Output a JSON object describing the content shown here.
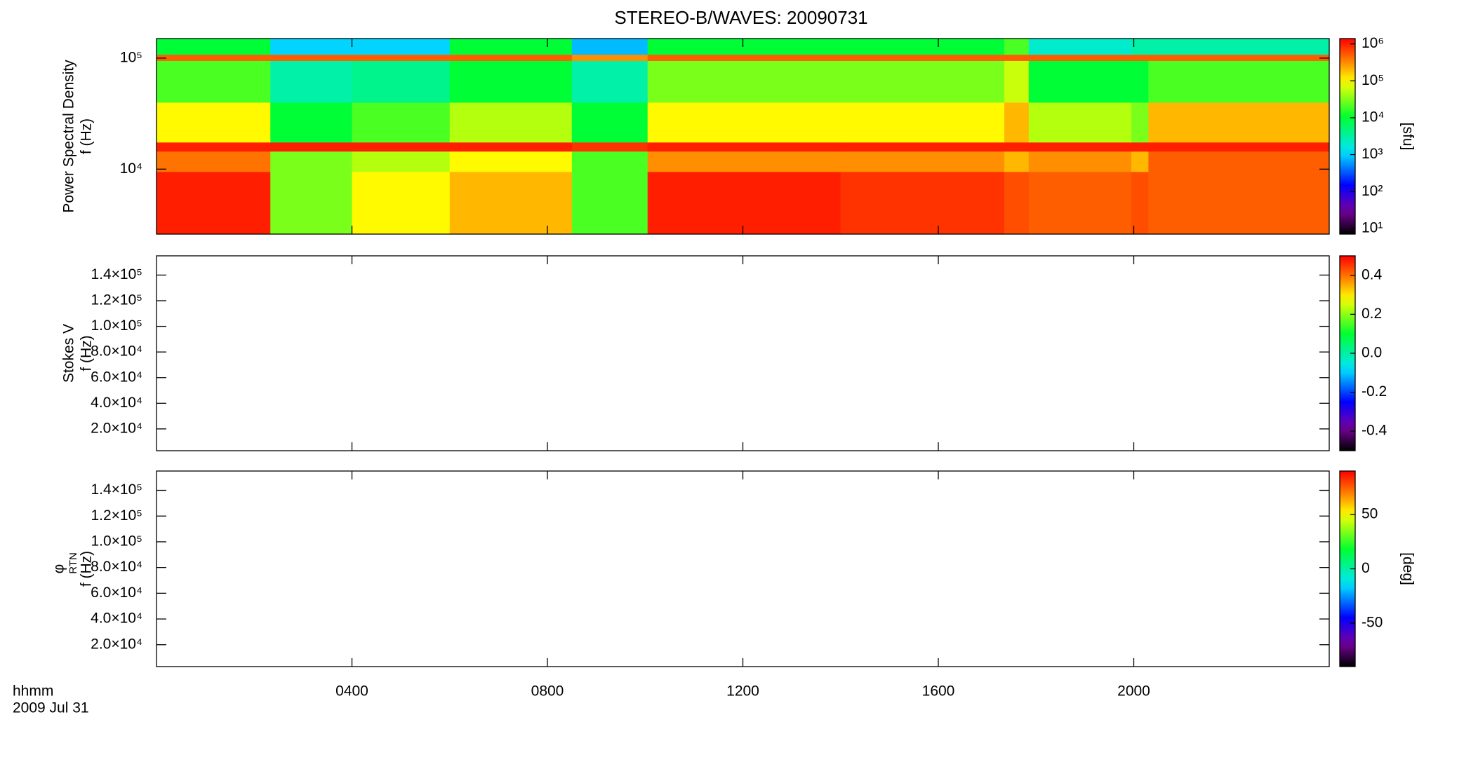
{
  "title": "STEREO-B/WAVES: 20090731",
  "x_axis": {
    "label": "hhmm",
    "date": "2009 Jul 31",
    "xlim": [
      0,
      24
    ],
    "xticks": [
      {
        "value": 4,
        "label": "0400"
      },
      {
        "value": 8,
        "label": "0800"
      },
      {
        "value": 12,
        "label": "1200"
      },
      {
        "value": 16,
        "label": "1600"
      },
      {
        "value": 20,
        "label": "2000"
      }
    ]
  },
  "chart_data": [
    {
      "type": "heatmap",
      "ylabel": [
        "Power Spectral Density",
        "f (Hz)"
      ],
      "ylog": true,
      "ylim": [
        2600,
        150000
      ],
      "yticks": [
        {
          "value": 10000,
          "label": "10⁴"
        },
        {
          "value": 100000,
          "label": "10⁵"
        }
      ],
      "x": [
        0,
        2.33,
        4.0,
        6.0,
        8.5,
        10.05,
        14,
        17.35,
        17.85,
        19.95,
        20.3,
        24
      ],
      "y": [
        2600,
        9500,
        14500,
        17500,
        40000,
        95000,
        108000,
        150000
      ],
      "values": [
        [
          1000000,
          30000,
          100000,
          200000,
          20000,
          1000000,
          800000,
          600000,
          500000,
          600000,
          500000
        ],
        [
          400000,
          30000,
          50000,
          100000,
          20000,
          300000,
          300000,
          200000,
          300000,
          200000,
          500000
        ],
        [
          1000000,
          1000000,
          1000000,
          1000000,
          800000,
          1000000,
          1000000,
          1000000,
          1000000,
          1000000,
          1000000
        ],
        [
          100000,
          10000,
          20000,
          50000,
          10000,
          100000,
          100000,
          200000,
          50000,
          30000,
          200000
        ],
        [
          20000,
          3000,
          4000,
          10000,
          3000,
          30000,
          30000,
          60000,
          10000,
          10000,
          20000
        ],
        [
          500000,
          500000,
          500000,
          500000,
          300000,
          500000,
          500000,
          500000,
          500000,
          500000,
          500000
        ],
        [
          10000,
          1000,
          1000,
          10000,
          800,
          10000,
          10000,
          20000,
          2000,
          3000,
          3000
        ]
      ],
      "colorbar": {
        "label": "[sfu]",
        "log": true,
        "lim": [
          7,
          1400000
        ],
        "colormap": "rainbow",
        "ticks": [
          {
            "value": 10,
            "label": "10¹"
          },
          {
            "value": 100,
            "label": "10²"
          },
          {
            "value": 1000,
            "label": "10³"
          },
          {
            "value": 10000,
            "label": "10⁴"
          },
          {
            "value": 100000,
            "label": "10⁵"
          },
          {
            "value": 1000000,
            "label": "10⁶"
          }
        ]
      }
    },
    {
      "type": "heatmap",
      "ylabel": [
        "Stokes V",
        "f (Hz)"
      ],
      "ylog": false,
      "ylim": [
        3000,
        155000
      ],
      "yticks": [
        {
          "value": 20000,
          "label": "2.0×10⁴"
        },
        {
          "value": 40000,
          "label": "4.0×10⁴"
        },
        {
          "value": 60000,
          "label": "6.0×10⁴"
        },
        {
          "value": 80000,
          "label": "8.0×10⁴"
        },
        {
          "value": 100000,
          "label": "1.0×10⁵"
        },
        {
          "value": 120000,
          "label": "1.2×10⁵"
        },
        {
          "value": 140000,
          "label": "1.4×10⁵"
        }
      ],
      "colorbar": {
        "log": false,
        "lim": [
          -0.5,
          0.5
        ],
        "colormap": "rainbow",
        "ticks": [
          {
            "value": -0.4,
            "label": "-0.4"
          },
          {
            "value": -0.2,
            "label": "-0.2"
          },
          {
            "value": 0,
            "label": "0.0"
          },
          {
            "value": 0.2,
            "label": "0.2"
          },
          {
            "value": 0.4,
            "label": "0.4"
          }
        ]
      }
    },
    {
      "type": "heatmap",
      "ylabel": [
        "φ",
        "f (Hz)"
      ],
      "ylabel_subscript": "RTN",
      "ylog": false,
      "ylim": [
        3000,
        155000
      ],
      "yticks": [
        {
          "value": 20000,
          "label": "2.0×10⁴"
        },
        {
          "value": 40000,
          "label": "4.0×10⁴"
        },
        {
          "value": 60000,
          "label": "6.0×10⁴"
        },
        {
          "value": 80000,
          "label": "8.0×10⁴"
        },
        {
          "value": 100000,
          "label": "1.0×10⁵"
        },
        {
          "value": 120000,
          "label": "1.2×10⁵"
        },
        {
          "value": 140000,
          "label": "1.4×10⁵"
        }
      ],
      "colorbar": {
        "label": "[deg]",
        "log": false,
        "lim": [
          -90,
          90
        ],
        "colormap": "rainbow",
        "ticks": [
          -50,
          0,
          50
        ]
      }
    }
  ]
}
